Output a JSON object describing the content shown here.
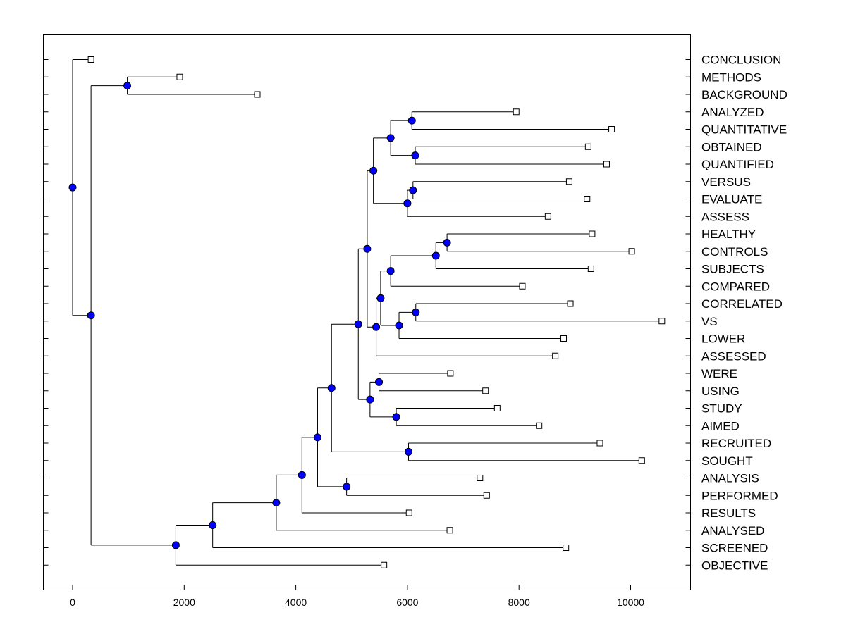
{
  "chart_data": {
    "type": "dendrogram",
    "orientation": "horizontal",
    "xlim": [
      -500,
      11100
    ],
    "x_ticks": [
      0,
      2000,
      4000,
      6000,
      8000,
      10000
    ],
    "x_tick_labels": [
      "0",
      "2000",
      "4000",
      "6000",
      "8000",
      "10000"
    ],
    "leaves": [
      {
        "id": 1,
        "label": "CONCLUSION",
        "end": 330
      },
      {
        "id": 2,
        "label": "METHODS",
        "end": 1920
      },
      {
        "id": 3,
        "label": "BACKGROUND",
        "end": 3310
      },
      {
        "id": 4,
        "label": "ANALYZED",
        "end": 7950
      },
      {
        "id": 5,
        "label": "QUANTITATIVE",
        "end": 9660
      },
      {
        "id": 6,
        "label": "OBTAINED",
        "end": 9240
      },
      {
        "id": 7,
        "label": "QUANTIFIED",
        "end": 9570
      },
      {
        "id": 8,
        "label": "VERSUS",
        "end": 8900
      },
      {
        "id": 9,
        "label": "EVALUATE",
        "end": 9220
      },
      {
        "id": 10,
        "label": "ASSESS",
        "end": 8520
      },
      {
        "id": 11,
        "label": "HEALTHY",
        "end": 9310
      },
      {
        "id": 12,
        "label": "CONTROLS",
        "end": 10020
      },
      {
        "id": 13,
        "label": "SUBJECTS",
        "end": 9290
      },
      {
        "id": 14,
        "label": "COMPARED",
        "end": 8060
      },
      {
        "id": 15,
        "label": "CORRELATED",
        "end": 8920
      },
      {
        "id": 16,
        "label": "VS",
        "end": 10560
      },
      {
        "id": 17,
        "label": "LOWER",
        "end": 8800
      },
      {
        "id": 18,
        "label": "ASSESSED",
        "end": 8650
      },
      {
        "id": 19,
        "label": "WERE",
        "end": 6770
      },
      {
        "id": 20,
        "label": "USING",
        "end": 7400
      },
      {
        "id": 21,
        "label": "STUDY",
        "end": 7610
      },
      {
        "id": 22,
        "label": "AIMED",
        "end": 8360
      },
      {
        "id": 23,
        "label": "RECRUITED",
        "end": 9450
      },
      {
        "id": 24,
        "label": "SOUGHT",
        "end": 10200
      },
      {
        "id": 25,
        "label": "ANALYSIS",
        "end": 7300
      },
      {
        "id": 26,
        "label": "PERFORMED",
        "end": 7420
      },
      {
        "id": 27,
        "label": "RESULTS",
        "end": 6030
      },
      {
        "id": 28,
        "label": "ANALYSED",
        "end": 6760
      },
      {
        "id": 29,
        "label": "SCREENED",
        "end": 8840
      },
      {
        "id": 30,
        "label": "OBJECTIVE",
        "end": 5580
      }
    ],
    "merges": [
      {
        "id": "n_methods_background",
        "x": 980,
        "children": [
          2,
          3
        ]
      },
      {
        "id": "n_analyzed_quantitative",
        "x": 6080,
        "children": [
          4,
          5
        ]
      },
      {
        "id": "n_obtained_quantified",
        "x": 6140,
        "children": [
          6,
          7
        ]
      },
      {
        "id": "n_block_a",
        "x": 5700,
        "children": [
          "n_analyzed_quantitative",
          "n_obtained_quantified"
        ]
      },
      {
        "id": "n_versus_evaluate",
        "x": 6100,
        "children": [
          8,
          9
        ]
      },
      {
        "id": "n_block_b",
        "x": 6000,
        "children": [
          "n_versus_evaluate",
          10
        ]
      },
      {
        "id": "n_block_ab",
        "x": 5390,
        "children": [
          "n_block_a",
          "n_block_b"
        ]
      },
      {
        "id": "n_healthy_controls",
        "x": 6710,
        "children": [
          11,
          12
        ]
      },
      {
        "id": "n_block_c",
        "x": 6510,
        "children": [
          "n_healthy_controls",
          13
        ]
      },
      {
        "id": "n_block_d",
        "x": 5700,
        "children": [
          "n_block_c",
          14
        ]
      },
      {
        "id": "n_correlated_vs",
        "x": 6150,
        "children": [
          15,
          16
        ]
      },
      {
        "id": "n_block_e",
        "x": 5850,
        "children": [
          "n_correlated_vs",
          17
        ]
      },
      {
        "id": "n_block_de",
        "x": 5520,
        "children": [
          "n_block_d",
          "n_block_e"
        ]
      },
      {
        "id": "n_block_f",
        "x": 5440,
        "children": [
          "n_block_de",
          18
        ]
      },
      {
        "id": "n_block_abf",
        "x": 5280,
        "children": [
          "n_block_ab",
          "n_block_f"
        ]
      },
      {
        "id": "n_were_using",
        "x": 5490,
        "children": [
          19,
          20
        ]
      },
      {
        "id": "n_study_aimed",
        "x": 5800,
        "children": [
          21,
          22
        ]
      },
      {
        "id": "n_block_g",
        "x": 5330,
        "children": [
          "n_were_using",
          "n_study_aimed"
        ]
      },
      {
        "id": "n_block_h",
        "x": 5120,
        "children": [
          "n_block_abf",
          "n_block_g"
        ]
      },
      {
        "id": "n_recruited_sought",
        "x": 6020,
        "children": [
          23,
          24
        ]
      },
      {
        "id": "n_block_i",
        "x": 4640,
        "children": [
          "n_block_h",
          "n_recruited_sought"
        ]
      },
      {
        "id": "n_analysis_performed",
        "x": 4910,
        "children": [
          25,
          26
        ]
      },
      {
        "id": "n_block_j",
        "x": 4390,
        "children": [
          "n_block_i",
          "n_analysis_performed"
        ]
      },
      {
        "id": "n_block_k",
        "x": 4110,
        "children": [
          "n_block_j",
          27
        ]
      },
      {
        "id": "n_block_l",
        "x": 3650,
        "children": [
          "n_block_k",
          28
        ]
      },
      {
        "id": "n_block_m",
        "x": 2510,
        "children": [
          "n_block_l",
          29
        ]
      },
      {
        "id": "n_block_n",
        "x": 1850,
        "children": [
          "n_block_m",
          30
        ]
      },
      {
        "id": "n_block_o",
        "x": 330,
        "children": [
          "n_methods_background",
          "n_block_n"
        ]
      },
      {
        "id": "n_root",
        "x": 0,
        "children": [
          1,
          "n_block_o"
        ]
      }
    ]
  }
}
